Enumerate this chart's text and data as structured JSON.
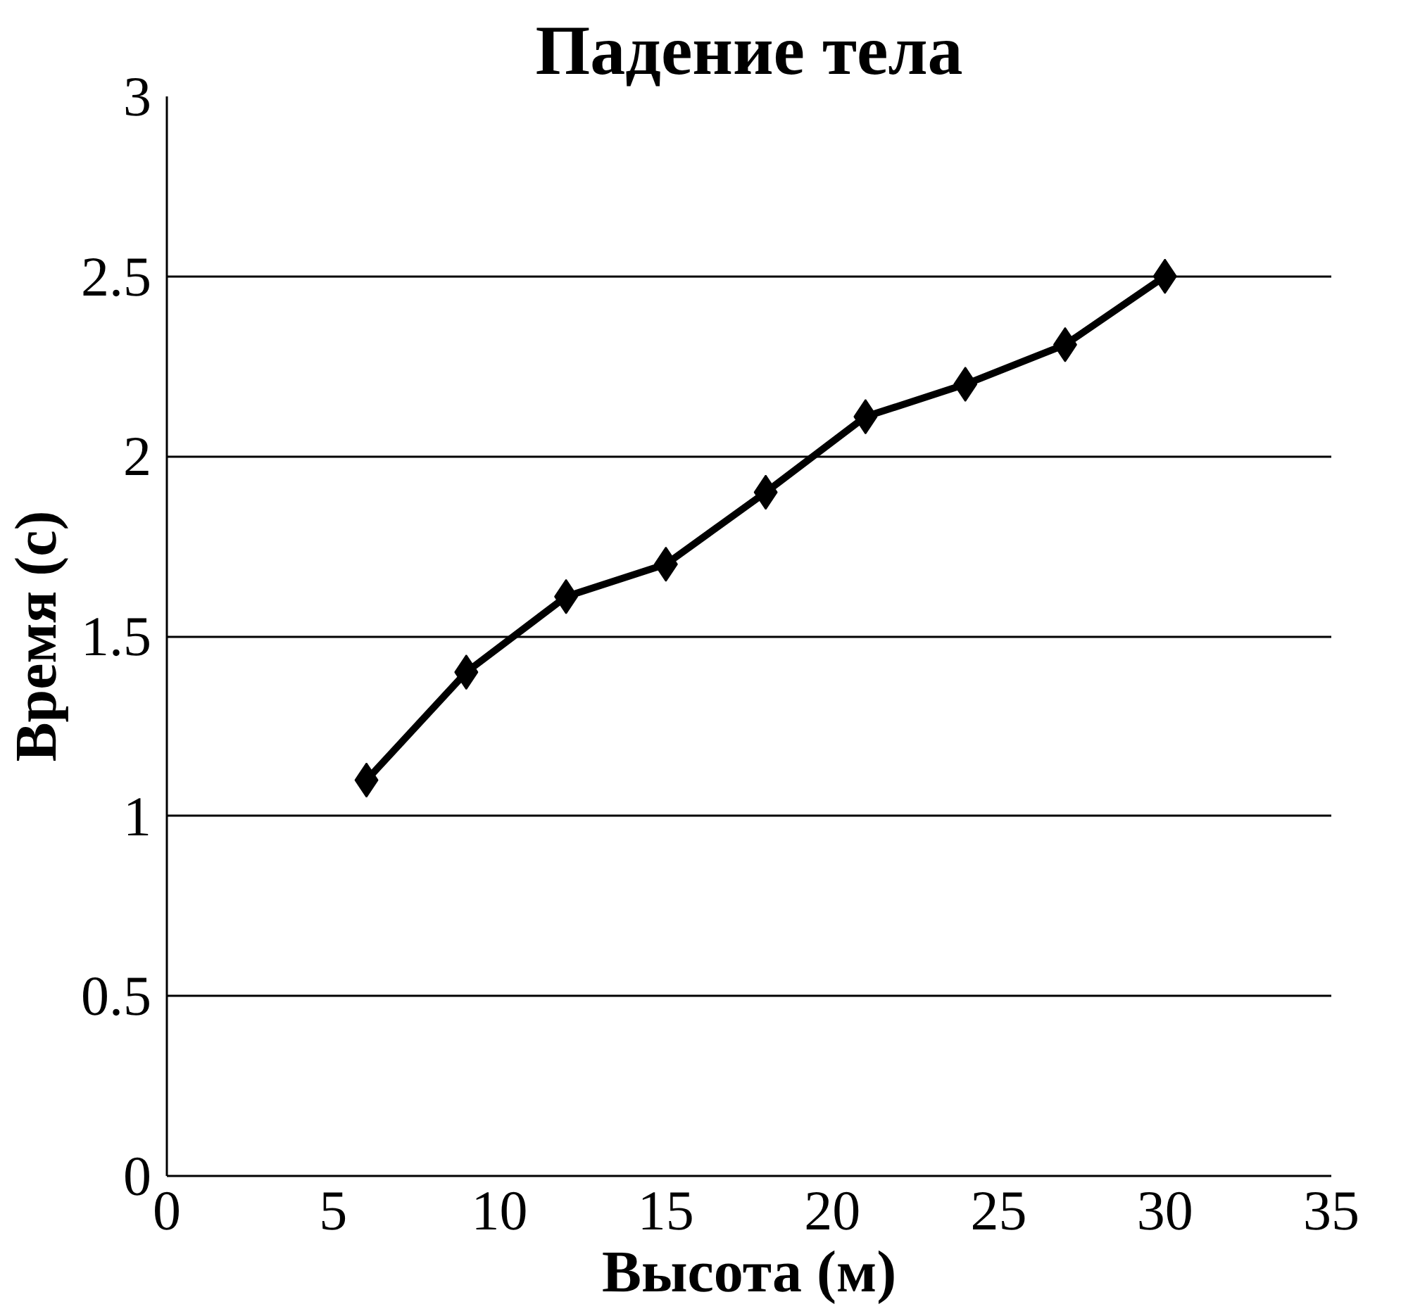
{
  "chart_data": {
    "type": "line",
    "title": "Падение тела",
    "xlabel": "Высота (м)",
    "ylabel": "Время (с)",
    "x": [
      6,
      9,
      12,
      15,
      18,
      21,
      24,
      27,
      30
    ],
    "series": [
      {
        "color": "#000000",
        "values": [
          1.1,
          1.4,
          1.61,
          1.7,
          1.9,
          2.11,
          2.2,
          2.31,
          2.5
        ]
      }
    ],
    "xlim": [
      0,
      35
    ],
    "xticks": [
      0,
      5,
      10,
      15,
      20,
      25,
      30,
      35
    ],
    "ylim": [
      0,
      3
    ],
    "yticks": [
      0,
      0.5,
      1,
      1.5,
      2,
      2.5,
      3
    ],
    "grid": "y",
    "marker": "diamond",
    "line_style": "solid"
  }
}
